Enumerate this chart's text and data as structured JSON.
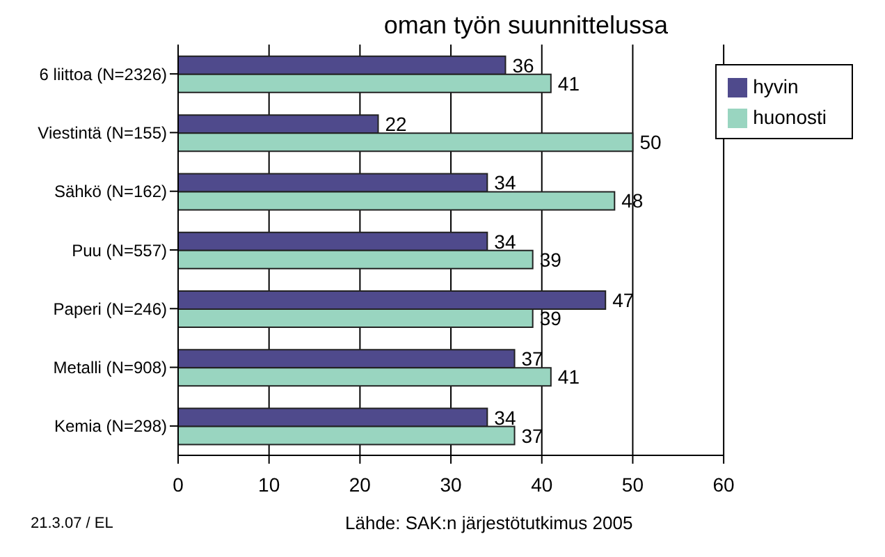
{
  "chart_data": {
    "type": "bar",
    "orientation": "horizontal",
    "title": "oman työn suunnittelussa",
    "categories": [
      "6 liittoa (N=2326)",
      "Viestintä (N=155)",
      "Sähkö (N=162)",
      "Puu (N=557)",
      "Paperi (N=246)",
      "Metalli (N=908)",
      "Kemia (N=298)"
    ],
    "series": [
      {
        "name": "hyvin",
        "color": "#4f4a8c",
        "values": [
          36,
          22,
          34,
          34,
          47,
          37,
          34
        ]
      },
      {
        "name": "huonosti",
        "color": "#99d5c0",
        "values": [
          41,
          50,
          48,
          39,
          39,
          41,
          37
        ]
      }
    ],
    "xlim": [
      0,
      60
    ],
    "xticks": [
      0,
      10,
      20,
      30,
      40,
      50,
      60
    ],
    "grid": "x",
    "legend": "top right",
    "data_labels": true,
    "annotations": [
      "21.3.07 / EL",
      "Lähde: SAK:n järjestötutkimus 2005"
    ]
  }
}
